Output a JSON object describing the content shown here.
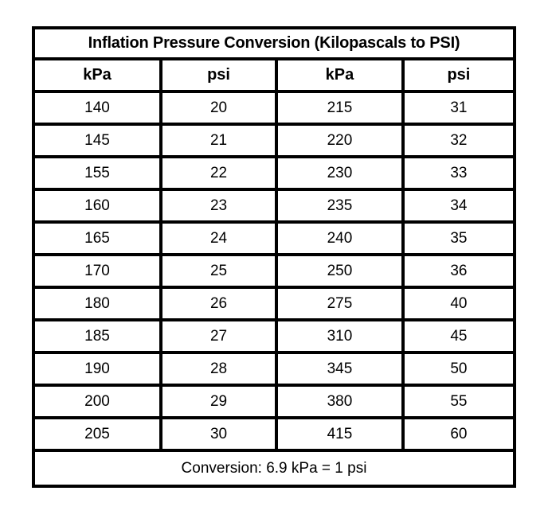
{
  "title": "Inflation Pressure Conversion (Kilopascals to PSI)",
  "table": {
    "headers": [
      "kPa",
      "psi",
      "kPa",
      "psi"
    ],
    "rows": [
      [
        "140",
        "20",
        "215",
        "31"
      ],
      [
        "145",
        "21",
        "220",
        "32"
      ],
      [
        "155",
        "22",
        "230",
        "33"
      ],
      [
        "160",
        "23",
        "235",
        "34"
      ],
      [
        "165",
        "24",
        "240",
        "35"
      ],
      [
        "170",
        "25",
        "250",
        "36"
      ],
      [
        "180",
        "26",
        "275",
        "40"
      ],
      [
        "185",
        "27",
        "310",
        "45"
      ],
      [
        "190",
        "28",
        "345",
        "50"
      ],
      [
        "200",
        "29",
        "380",
        "55"
      ],
      [
        "205",
        "30",
        "415",
        "60"
      ]
    ],
    "footer": "Conversion: 6.9 kPa = 1 psi"
  },
  "chart_data": {
    "type": "table",
    "title": "Inflation Pressure Conversion (Kilopascals to PSI)",
    "columns": [
      "kPa",
      "psi",
      "kPa",
      "psi"
    ],
    "rows": [
      [
        140,
        20,
        215,
        31
      ],
      [
        145,
        21,
        220,
        32
      ],
      [
        155,
        22,
        230,
        33
      ],
      [
        160,
        23,
        235,
        34
      ],
      [
        165,
        24,
        240,
        35
      ],
      [
        170,
        25,
        250,
        36
      ],
      [
        180,
        26,
        275,
        40
      ],
      [
        185,
        27,
        310,
        45
      ],
      [
        190,
        28,
        345,
        50
      ],
      [
        200,
        29,
        380,
        55
      ],
      [
        205,
        30,
        415,
        60
      ]
    ],
    "note": "Conversion: 6.9 kPa = 1 psi"
  },
  "colors": {
    "border": "#000000",
    "text": "#000000",
    "background": "#ffffff"
  }
}
